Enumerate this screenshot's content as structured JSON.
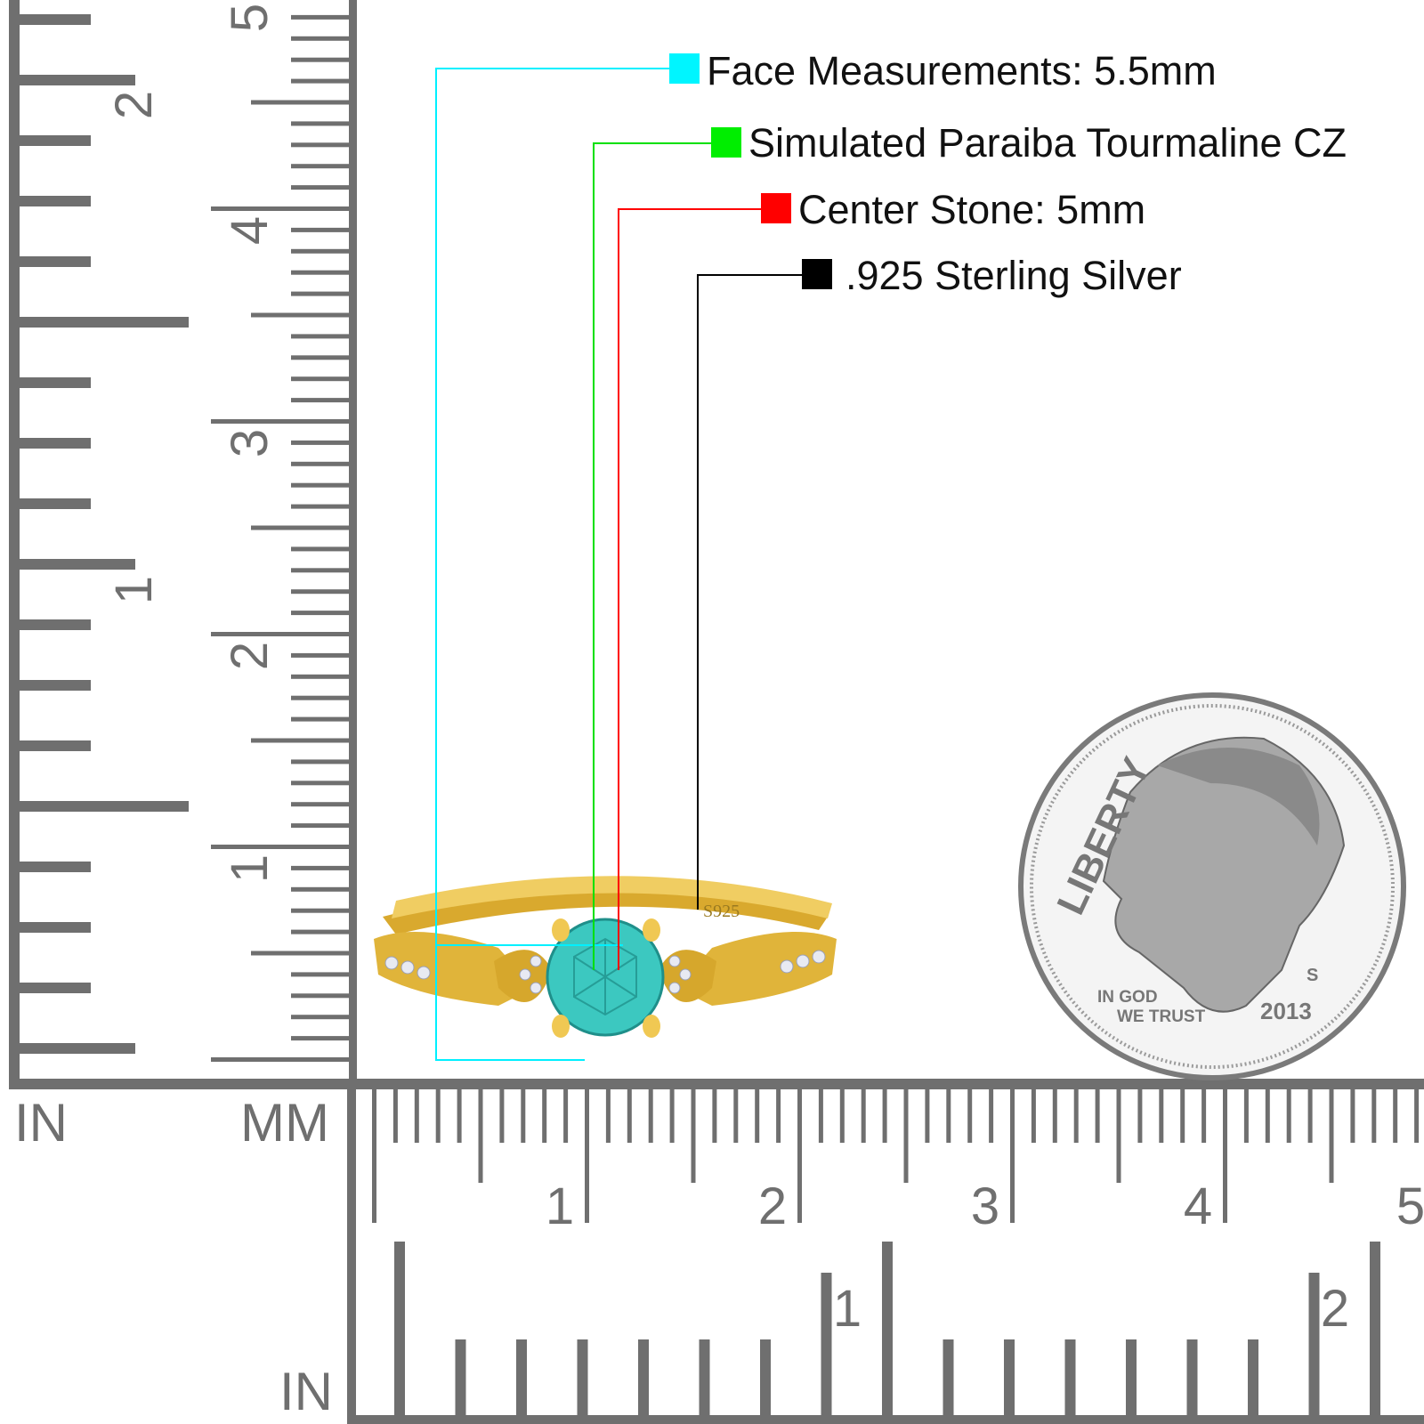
{
  "callouts": [
    {
      "text": "Face Measurements: 5.5mm",
      "color": "#00f5ff"
    },
    {
      "text": "Simulated Paraiba Tourmaline CZ",
      "color": "#00ee00"
    },
    {
      "text": "Center Stone: 5mm",
      "color": "#ff0000"
    },
    {
      "text": ".925 Sterling Silver",
      "color": "#000000"
    }
  ],
  "rulers": {
    "left_inch_label": "IN",
    "left_mm_label": "MM",
    "bottom_inch_label": "IN",
    "vertical_inch_numbers": [
      "1",
      "2"
    ],
    "vertical_cm_numbers": [
      "1",
      "2",
      "3",
      "4",
      "5"
    ],
    "horizontal_cm_numbers": [
      "1",
      "2",
      "3",
      "4",
      "5"
    ],
    "horizontal_inch_numbers": [
      "1",
      "2"
    ],
    "color": "#6f6f6f"
  },
  "ring": {
    "stamp": "S925",
    "metal_color": "#e0b43a",
    "stone_color": "#3cc8c0"
  },
  "coin": {
    "legend": "LIBERTY",
    "motto_line1": "IN GOD",
    "motto_line2": "WE TRUST",
    "year": "2013",
    "mint_mark": "S"
  }
}
